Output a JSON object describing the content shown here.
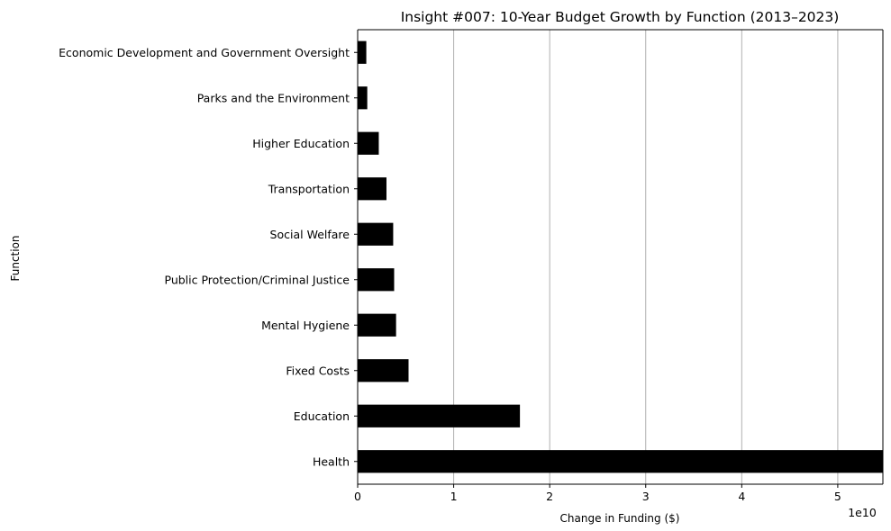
{
  "chart_data": {
    "type": "bar",
    "orientation": "horizontal",
    "title": "Insight #007: 10-Year Budget Growth by Function (2013–2023)",
    "xlabel": "Change in Funding ($)",
    "ylabel": "Function",
    "x_offset_label": "1e10",
    "xlim": [
      0,
      54700000000.0
    ],
    "x_ticks": [
      0,
      10000000000.0,
      20000000000.0,
      30000000000.0,
      40000000000.0,
      50000000000.0
    ],
    "x_tick_labels": [
      "0",
      "1",
      "2",
      "3",
      "4",
      "5"
    ],
    "grid": "x-major",
    "bar_color": "#000000",
    "categories": [
      "Economic Development and Government Oversight",
      "Parks and the Environment",
      "Higher Education",
      "Transportation",
      "Social Welfare",
      "Public Protection/Criminal Justice",
      "Mental Hygiene",
      "Fixed Costs",
      "Education",
      "Health"
    ],
    "values": [
      900000000.0,
      1000000000.0,
      2200000000.0,
      3000000000.0,
      3700000000.0,
      3800000000.0,
      4000000000.0,
      5300000000.0,
      16900000000.0,
      54700000000.0
    ]
  }
}
